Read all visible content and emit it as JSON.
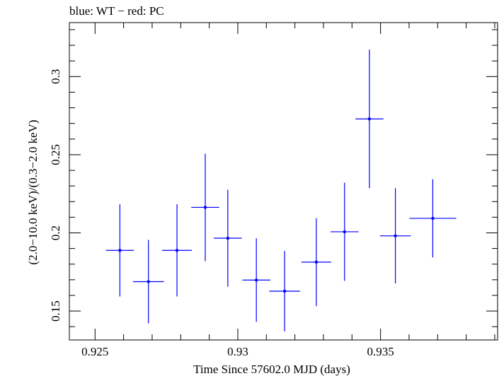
{
  "chart_data": {
    "type": "scatter",
    "title": "blue: WT − red: PC",
    "xlabel": "Time Since 57602.0 MJD (days)",
    "ylabel": "(2.0−10.0 keV)/(0.3−2.0 keV)",
    "xlim": [
      0.9241,
      0.9391
    ],
    "ylim": [
      0.1315,
      0.3345
    ],
    "x_ticks": [
      0.925,
      0.93,
      0.935
    ],
    "x_tick_labels": [
      "0.925",
      "0.93",
      "0.935"
    ],
    "y_ticks": [
      0.15,
      0.2,
      0.25,
      0.3
    ],
    "y_tick_labels": [
      "0.15",
      "0.2",
      "0.25",
      "0.3"
    ],
    "grid": false,
    "series": [
      {
        "color": "#0000ff",
        "points": [
          {
            "x": 0.92587,
            "y": 0.1888,
            "xerr": 0.00049,
            "yerr_low": 0.0295,
            "yerr_high": 0.0295
          },
          {
            "x": 0.92687,
            "y": 0.1688,
            "xerr": 0.00054,
            "yerr_low": 0.0267,
            "yerr_high": 0.0267
          },
          {
            "x": 0.92787,
            "y": 0.1888,
            "xerr": 0.00052,
            "yerr_low": 0.0295,
            "yerr_high": 0.0295
          },
          {
            "x": 0.92886,
            "y": 0.2163,
            "xerr": 0.00049,
            "yerr_low": 0.0344,
            "yerr_high": 0.0344
          },
          {
            "x": 0.92965,
            "y": 0.1966,
            "xerr": 0.00049,
            "yerr_low": 0.031,
            "yerr_high": 0.031
          },
          {
            "x": 0.93065,
            "y": 0.1698,
            "xerr": 0.00049,
            "yerr_low": 0.0267,
            "yerr_high": 0.0267
          },
          {
            "x": 0.93164,
            "y": 0.1627,
            "xerr": 0.00054,
            "yerr_low": 0.0257,
            "yerr_high": 0.0257
          },
          {
            "x": 0.93275,
            "y": 0.1813,
            "xerr": 0.00052,
            "yerr_low": 0.0281,
            "yerr_high": 0.0281
          },
          {
            "x": 0.93374,
            "y": 0.2007,
            "xerr": 0.00049,
            "yerr_low": 0.0314,
            "yerr_high": 0.0314
          },
          {
            "x": 0.93461,
            "y": 0.2729,
            "xerr": 0.00049,
            "yerr_low": 0.0443,
            "yerr_high": 0.0443
          },
          {
            "x": 0.93552,
            "y": 0.1981,
            "xerr": 0.00054,
            "yerr_low": 0.0305,
            "yerr_high": 0.0305
          },
          {
            "x": 0.93683,
            "y": 0.2093,
            "xerr": 0.00082,
            "yerr_low": 0.025,
            "yerr_high": 0.025
          }
        ]
      }
    ]
  }
}
